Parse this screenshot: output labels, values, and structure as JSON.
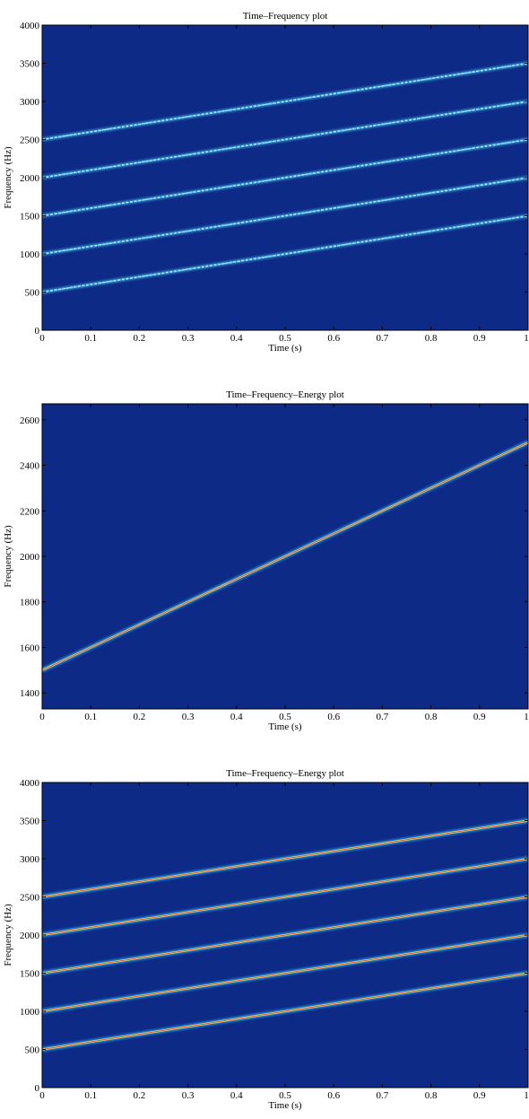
{
  "chart_data": [
    {
      "type": "heatmap",
      "title": "Time–Frequency plot",
      "xlabel": "Time (s)",
      "ylabel": "Frequency (Hz)",
      "xlim": [
        0,
        1
      ],
      "ylim": [
        0,
        4000
      ],
      "xticks": [
        0,
        0.1,
        0.2,
        0.3,
        0.4,
        0.5,
        0.6,
        0.7,
        0.8,
        0.9,
        1
      ],
      "xtick_labels": [
        "0",
        "0.1",
        "0.2",
        "0.3",
        "0.4",
        "0.5",
        "0.6",
        "0.7",
        "0.8",
        "0.9",
        "1"
      ],
      "yticks": [
        0,
        500,
        1000,
        1500,
        2000,
        2500,
        3000,
        3500,
        4000
      ],
      "ytick_labels": [
        "0",
        "500",
        "1000",
        "1500",
        "2000",
        "2500",
        "3000",
        "3500",
        "4000"
      ],
      "grid": false,
      "colors": {
        "background": "#0c2a86",
        "ridge": "#5fd8ff",
        "ridge_core": "#d8f4ff"
      },
      "ridges": [
        {
          "x": [
            0,
            1
          ],
          "y": [
            500,
            1500
          ]
        },
        {
          "x": [
            0,
            1
          ],
          "y": [
            1000,
            2000
          ]
        },
        {
          "x": [
            0,
            1
          ],
          "y": [
            1500,
            2500
          ]
        },
        {
          "x": [
            0,
            1
          ],
          "y": [
            2000,
            3000
          ]
        },
        {
          "x": [
            0,
            1
          ],
          "y": [
            2500,
            3500
          ]
        }
      ]
    },
    {
      "type": "heatmap",
      "title": "Time–Frequency–Energy plot",
      "xlabel": "Time (s)",
      "ylabel": "Frequency (Hz)",
      "xlim": [
        0,
        1
      ],
      "ylim": [
        1330,
        2670
      ],
      "xticks": [
        0,
        0.1,
        0.2,
        0.3,
        0.4,
        0.5,
        0.6,
        0.7,
        0.8,
        0.9,
        1
      ],
      "xtick_labels": [
        "0",
        "0.1",
        "0.2",
        "0.3",
        "0.4",
        "0.5",
        "0.6",
        "0.7",
        "0.8",
        "0.9",
        "1"
      ],
      "yticks": [
        1400,
        1600,
        1800,
        2000,
        2200,
        2400,
        2600
      ],
      "ytick_labels": [
        "1400",
        "1600",
        "1800",
        "2000",
        "2200",
        "2400",
        "2600"
      ],
      "grid": false,
      "colors": {
        "background": "#0c2a86",
        "ridge_outer": "#2fb9ff",
        "ridge_mid": "#d7e86a",
        "ridge_core": "#e2554a"
      },
      "ridges": [
        {
          "x": [
            0,
            1
          ],
          "y": [
            1500,
            2500
          ]
        }
      ]
    },
    {
      "type": "heatmap",
      "title": "Time–Frequency–Energy plot",
      "xlabel": "Time (s)",
      "ylabel": "Frequency (Hz)",
      "xlim": [
        0,
        1
      ],
      "ylim": [
        0,
        4000
      ],
      "xticks": [
        0,
        0.1,
        0.2,
        0.3,
        0.4,
        0.5,
        0.6,
        0.7,
        0.8,
        0.9,
        1
      ],
      "xtick_labels": [
        "0",
        "0.1",
        "0.2",
        "0.3",
        "0.4",
        "0.5",
        "0.6",
        "0.7",
        "0.8",
        "0.9",
        "1"
      ],
      "yticks": [
        0,
        500,
        1000,
        1500,
        2000,
        2500,
        3000,
        3500,
        4000
      ],
      "ytick_labels": [
        "0",
        "500",
        "1000",
        "1500",
        "2000",
        "2500",
        "3000",
        "3500",
        "4000"
      ],
      "grid": false,
      "colors": {
        "background": "#0c2a86",
        "ridge_outer": "#2fb9ff",
        "ridge_mid": "#d7e86a",
        "ridge_core": "#e2554a"
      },
      "ridges": [
        {
          "x": [
            0,
            1
          ],
          "y": [
            500,
            1500
          ]
        },
        {
          "x": [
            0,
            1
          ],
          "y": [
            1000,
            2000
          ]
        },
        {
          "x": [
            0,
            1
          ],
          "y": [
            1500,
            2500
          ]
        },
        {
          "x": [
            0,
            1
          ],
          "y": [
            2000,
            3000
          ]
        },
        {
          "x": [
            0,
            1
          ],
          "y": [
            2500,
            3500
          ]
        }
      ]
    }
  ]
}
